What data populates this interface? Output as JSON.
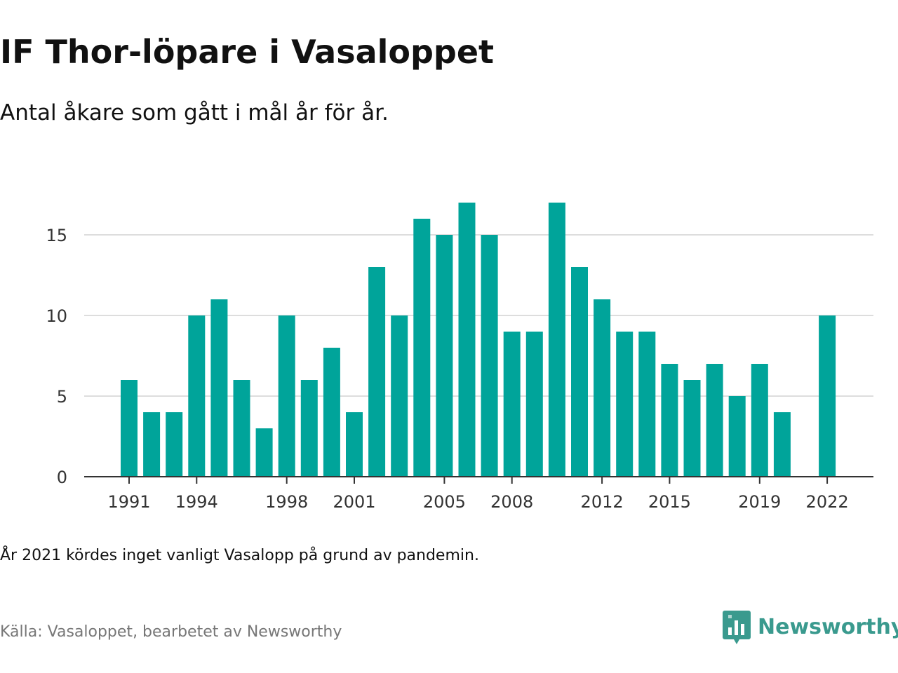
{
  "title": "IF Thor-löpare i Vasaloppet",
  "subtitle": "Antal åkare som gått i mål år för år.",
  "note": "År 2021 kördes inget vanligt Vasalopp på grund av pandemin.",
  "source": "Källa: Vasaloppet, bearbetet av Newsworthy",
  "brand": {
    "name": "Newsworthy",
    "icon": "newsworthy-logo-icon",
    "color": "#3a9a8e"
  },
  "colors": {
    "bar": "#00a49a",
    "grid": "#dddddd",
    "axis": "#333333"
  },
  "chart_data": {
    "type": "bar",
    "title": "",
    "xlabel": "",
    "ylabel": "",
    "categories": [
      1991,
      1992,
      1993,
      1994,
      1995,
      1996,
      1997,
      1998,
      1999,
      2000,
      2001,
      2002,
      2003,
      2004,
      2005,
      2006,
      2007,
      2008,
      2009,
      2010,
      2011,
      2012,
      2013,
      2014,
      2015,
      2016,
      2017,
      2018,
      2019,
      2020,
      2021,
      2022
    ],
    "values": [
      6,
      4,
      4,
      10,
      11,
      6,
      3,
      10,
      6,
      8,
      4,
      13,
      10,
      16,
      15,
      17,
      15,
      9,
      9,
      17,
      13,
      11,
      9,
      9,
      7,
      6,
      7,
      5,
      7,
      4,
      null,
      10
    ],
    "x_tick_labels": [
      "1991",
      "1994",
      "1998",
      "2001",
      "2005",
      "2008",
      "2012",
      "2015",
      "2019",
      "2022"
    ],
    "y_ticks": [
      0,
      5,
      10,
      15
    ],
    "ylim": [
      0,
      17
    ],
    "grid": true,
    "legend": "none"
  }
}
